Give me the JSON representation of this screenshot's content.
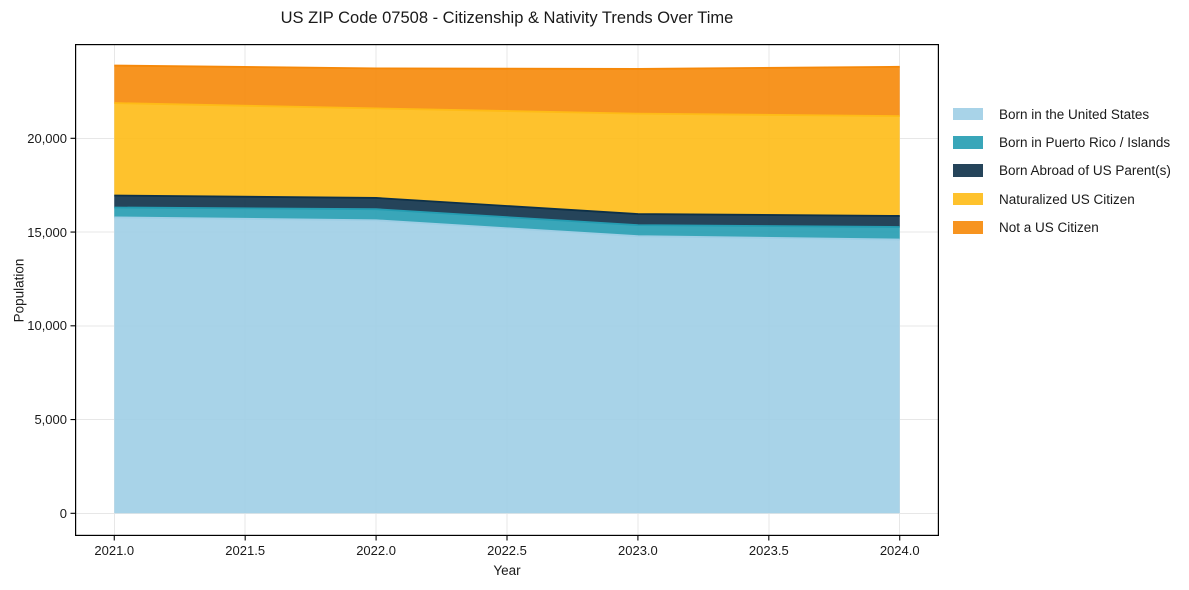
{
  "chart_data": {
    "type": "area",
    "stacked": true,
    "title": "US ZIP Code 07508 - Citizenship & Nativity Trends Over Time",
    "xlabel": "Year",
    "ylabel": "Population",
    "x": [
      2021,
      2022,
      2023,
      2024
    ],
    "series": [
      {
        "name": "Born in the United States",
        "color": "#9ECEE5",
        "values": [
          15780,
          15630,
          14780,
          14600
        ]
      },
      {
        "name": "Born in Puerto Rico / Islands",
        "color": "#249CB1",
        "values": [
          530,
          590,
          590,
          670
        ]
      },
      {
        "name": "Born Abroad of US Parent(s)",
        "color": "#0D3048",
        "values": [
          640,
          600,
          590,
          590
        ]
      },
      {
        "name": "Naturalized US Citizen",
        "color": "#FEBB16",
        "values": [
          4930,
          4775,
          5355,
          5325
        ]
      },
      {
        "name": "Not a US Citizen",
        "color": "#F68808",
        "values": [
          2000,
          2135,
          2385,
          2630
        ]
      }
    ],
    "xlim": [
      2020.85,
      2024.15
    ],
    "ylim": [
      -1210,
      25030
    ],
    "xticks": {
      "values": [
        2021,
        2021.5,
        2022,
        2022.5,
        2023,
        2023.5,
        2024
      ],
      "labels": [
        "2021.0",
        "2021.5",
        "2022.0",
        "2022.5",
        "2023.0",
        "2023.5",
        "2024.0"
      ]
    },
    "yticks": {
      "values": [
        0,
        5000,
        10000,
        15000,
        20000
      ],
      "labels": [
        "0",
        "5,000",
        "10,000",
        "15,000",
        "20,000"
      ]
    },
    "grid": true,
    "legend_position": "right",
    "fill_opacity": 0.9,
    "grid_color": "#e7e7e7",
    "spine_color": "#000000"
  }
}
